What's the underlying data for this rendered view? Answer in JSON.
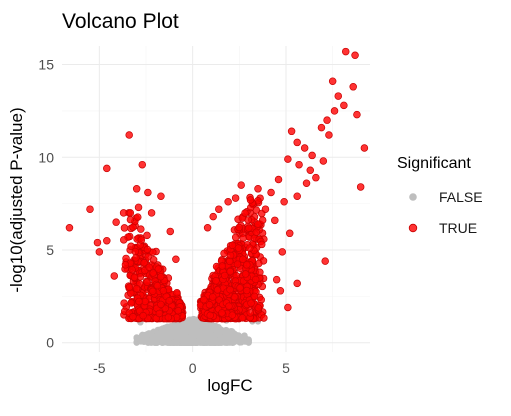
{
  "chart_data": {
    "type": "scatter",
    "title": "Volcano Plot",
    "xlabel": "logFC",
    "ylabel": "-log10(adjusted P-value)",
    "xlim": [
      -7,
      9.5
    ],
    "ylim": [
      -0.5,
      16
    ],
    "xticks": [
      -5,
      0,
      5
    ],
    "yticks": [
      0,
      5,
      10,
      15
    ],
    "grid": true,
    "legend": {
      "title": "Significant",
      "position": "right",
      "entries": [
        {
          "label": "FALSE",
          "color": "#bebebe"
        },
        {
          "label": "TRUE",
          "color": "#ff0000"
        }
      ]
    },
    "significance_threshold_y": 1.3,
    "series": [
      {
        "name": "FALSE",
        "color": "#bebebe",
        "description": "dense cloud of non-significant genes",
        "x_range": [
          -3.0,
          3.0
        ],
        "y_range": [
          0,
          1.3
        ],
        "outliers": [
          [
            1.8,
            1.2
          ],
          [
            3.2,
            1.15
          ],
          [
            3.5,
            1.15
          ],
          [
            -2.8,
            1.1
          ]
        ]
      },
      {
        "name": "TRUE",
        "color": "#ff0000",
        "description": "significant genes forming volcano arms",
        "points": [
          [
            8.2,
            15.7
          ],
          [
            8.7,
            15.5
          ],
          [
            7.5,
            14.1
          ],
          [
            8.6,
            13.8
          ],
          [
            7.8,
            13.3
          ],
          [
            8.1,
            12.8
          ],
          [
            7.6,
            12.5
          ],
          [
            8.8,
            12.3
          ],
          [
            7.2,
            12.0
          ],
          [
            6.9,
            11.6
          ],
          [
            7.3,
            11.2
          ],
          [
            9.2,
            10.5
          ],
          [
            5.3,
            11.4
          ],
          [
            5.6,
            10.8
          ],
          [
            6.0,
            10.5
          ],
          [
            6.4,
            10.1
          ],
          [
            5.1,
            9.9
          ],
          [
            5.7,
            9.6
          ],
          [
            6.3,
            9.3
          ],
          [
            6.1,
            8.6
          ],
          [
            7.0,
            9.8
          ],
          [
            6.6,
            8.9
          ],
          [
            9.0,
            8.4
          ],
          [
            4.6,
            8.8
          ],
          [
            4.2,
            8.1
          ],
          [
            4.9,
            7.6
          ],
          [
            5.6,
            7.9
          ],
          [
            3.5,
            8.3
          ],
          [
            3.1,
            7.7
          ],
          [
            2.6,
            8.5
          ],
          [
            2.3,
            7.8
          ],
          [
            1.9,
            7.6
          ],
          [
            1.4,
            7.2
          ],
          [
            1.1,
            6.8
          ],
          [
            0.8,
            6.2
          ],
          [
            3.9,
            7.2
          ],
          [
            4.4,
            6.6
          ],
          [
            5.2,
            5.9
          ],
          [
            3.7,
            5.3
          ],
          [
            4.8,
            4.9
          ],
          [
            2.9,
            4.2
          ],
          [
            3.6,
            3.8
          ],
          [
            4.7,
            2.8
          ],
          [
            5.1,
            1.9
          ],
          [
            7.1,
            4.4
          ],
          [
            4.5,
            3.4
          ],
          [
            5.6,
            3.2
          ],
          [
            -3.4,
            11.2
          ],
          [
            -2.7,
            9.6
          ],
          [
            -4.6,
            9.4
          ],
          [
            -2.4,
            8.1
          ],
          [
            -3.0,
            8.3
          ],
          [
            -1.7,
            7.9
          ],
          [
            -5.5,
            7.2
          ],
          [
            -3.7,
            7.0
          ],
          [
            -2.9,
            7.3
          ],
          [
            -2.2,
            7.0
          ],
          [
            -6.6,
            6.2
          ],
          [
            -4.1,
            6.5
          ],
          [
            -4.6,
            5.5
          ],
          [
            -5.1,
            5.4
          ],
          [
            -5.0,
            4.9
          ],
          [
            -3.3,
            5.2
          ],
          [
            -1.2,
            6.0
          ],
          [
            -0.9,
            4.5
          ],
          [
            -3.6,
            4.2
          ],
          [
            -4.2,
            3.6
          ],
          [
            -3.4,
            1.6
          ],
          [
            -3.2,
            1.4
          ]
        ],
        "arm_counts": {
          "left": 520,
          "right": 900
        }
      }
    ]
  }
}
